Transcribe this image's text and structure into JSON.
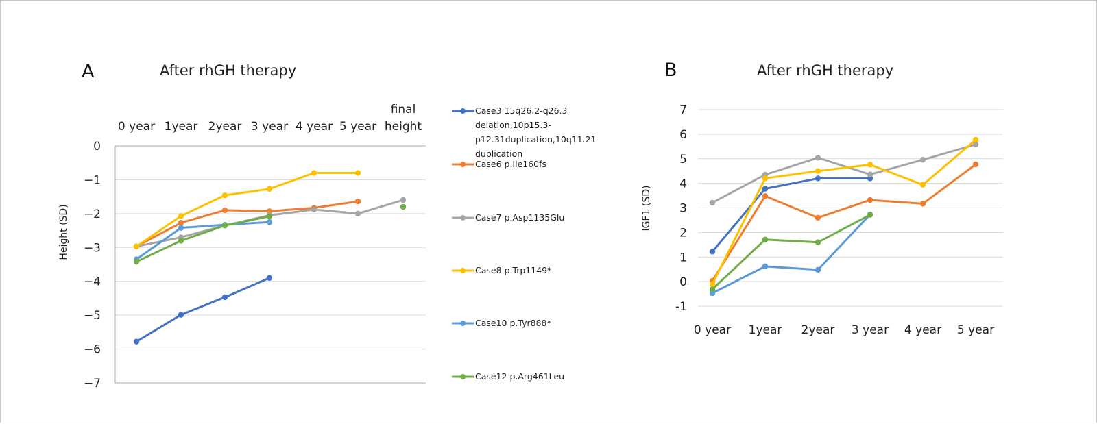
{
  "colors": {
    "case3": "#4472C4",
    "case6": "#ED7D31",
    "case7": "#A5A5A5",
    "case8": "#FFC000",
    "case10": "#5B9BD5",
    "case12": "#70AD47",
    "grid": "#d9d9d9"
  },
  "legend": [
    {
      "key": "case3",
      "lines": [
        "Case3 15q26.2-q26.3",
        "delation,10p15.3-",
        "p12.31duplication,10q11.21",
        "duplication"
      ]
    },
    {
      "key": "case6",
      "lines": [
        "Case6  p.Ile160fs"
      ]
    },
    {
      "key": "case7",
      "lines": [
        "Case7 p.Asp1135Glu"
      ]
    },
    {
      "key": "case8",
      "lines": [
        "Case8 p.Trp1149*"
      ]
    },
    {
      "key": "case10",
      "lines": [
        "Case10 p.Tyr888*"
      ]
    },
    {
      "key": "case12",
      "lines": [
        "Case12 p.Arg461Leu"
      ]
    }
  ],
  "chart_data": [
    {
      "panel": "A",
      "type": "line",
      "title": "After rhGH therapy",
      "ylabel": "Height (SD)",
      "xlabel": "",
      "x_axis_position": "top",
      "ylim": [
        -7,
        0
      ],
      "yticks": [
        "0",
        "−1",
        "−2",
        "−3",
        "−4",
        "−5",
        "−6",
        "−7"
      ],
      "categories": [
        "0 year",
        "1year",
        "2year",
        "3 year",
        "4 year",
        "5 year",
        "final height"
      ],
      "series": [
        {
          "name": "Case3 15q26.2-q26.3 delation,10p15.3-p12.31duplication,10q11.21 duplication",
          "key": "case3",
          "values": [
            -5.78,
            -4.99,
            -4.47,
            -3.9,
            null,
            null,
            null
          ]
        },
        {
          "name": "Case6  p.Ile160fs",
          "key": "case6",
          "values": [
            -2.97,
            -2.27,
            -1.9,
            -1.93,
            -1.83,
            -1.64,
            null
          ]
        },
        {
          "name": "Case7 p.Asp1135Glu",
          "key": "case7",
          "values": [
            -2.97,
            -2.7,
            -2.35,
            -2.05,
            -1.88,
            -2.0,
            -1.6
          ]
        },
        {
          "name": "Case8 p.Trp1149*",
          "key": "case8",
          "values": [
            -2.97,
            -2.07,
            -1.46,
            -1.27,
            -0.8,
            -0.8,
            null
          ]
        },
        {
          "name": "Case10 p.Tyr888*",
          "key": "case10",
          "values": [
            -3.35,
            -2.42,
            -2.33,
            -2.25,
            null,
            null,
            null
          ]
        },
        {
          "name": "Case12 p.Arg461Leu",
          "key": "case12",
          "values": [
            -3.42,
            -2.8,
            -2.35,
            -2.08,
            null,
            null,
            -1.8
          ]
        }
      ]
    },
    {
      "panel": "B",
      "type": "line",
      "title": "After rhGH therapy",
      "ylabel": "IGF1 (SD)",
      "xlabel": "",
      "x_axis_position": "bottom",
      "ylim": [
        -1,
        7
      ],
      "yticks": [
        "7",
        "6",
        "5",
        "4",
        "3",
        "2",
        "1",
        "0",
        "-1"
      ],
      "categories": [
        "0 year",
        "1year",
        "2year",
        "3 year",
        "4 year",
        "5 year"
      ],
      "series": [
        {
          "name": "Case3",
          "key": "case3",
          "values": [
            1.22,
            3.78,
            4.2,
            4.2,
            null,
            null
          ]
        },
        {
          "name": "Case6",
          "key": "case6",
          "values": [
            0.03,
            3.48,
            2.6,
            3.32,
            3.17,
            4.77
          ]
        },
        {
          "name": "Case7",
          "key": "case7",
          "values": [
            3.21,
            4.35,
            5.04,
            4.36,
            4.96,
            5.58
          ]
        },
        {
          "name": "Case8",
          "key": "case8",
          "values": [
            -0.1,
            4.2,
            4.5,
            4.76,
            3.94,
            5.77
          ]
        },
        {
          "name": "Case10",
          "key": "case10",
          "values": [
            -0.47,
            0.62,
            0.48,
            2.73,
            null,
            null
          ]
        },
        {
          "name": "Case12",
          "key": "case12",
          "values": [
            -0.31,
            1.71,
            1.6,
            2.72,
            null,
            null
          ]
        }
      ]
    }
  ]
}
